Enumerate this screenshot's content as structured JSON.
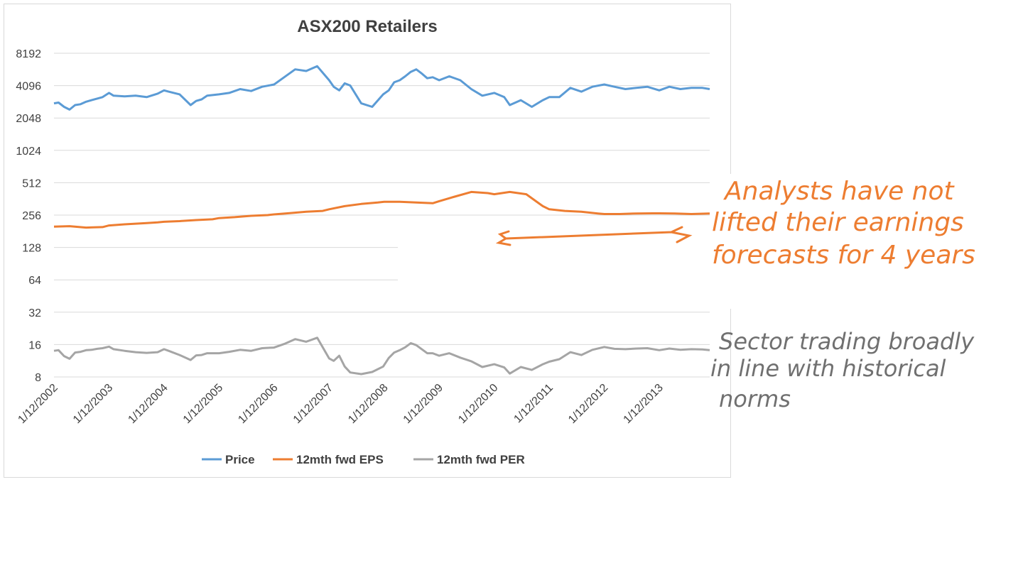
{
  "chart_data": {
    "type": "line",
    "title": "ASX200 Retailers",
    "xlabel": "",
    "ylabel": "",
    "y_scale": "log2",
    "ylim": [
      8,
      8192
    ],
    "y_ticks": [
      "8",
      "16",
      "32",
      "64",
      "128",
      "256",
      "512",
      "1024",
      "2048",
      "4096",
      "8192"
    ],
    "x_tick_labels": [
      "1/12/2002",
      "1/12/2003",
      "1/12/2004",
      "1/12/2005",
      "1/12/2006",
      "1/12/2007",
      "1/12/2008",
      "1/12/2009",
      "1/12/2010",
      "1/12/2011",
      "1/12/2012",
      "1/12/2013"
    ],
    "x_range_years": [
      2002.917,
      2014.833
    ],
    "grid": true,
    "legend_position": "bottom",
    "colors": {
      "Price": "#5b9bd5",
      "12mth fwd EPS": "#ed7d31",
      "12mth fwd PER": "#a5a5a5"
    },
    "series": [
      {
        "name": "Price",
        "x": [
          2002.917,
          2003.0,
          2003.1,
          2003.2,
          2003.3,
          2003.4,
          2003.5,
          2003.6,
          2003.7,
          2003.8,
          2003.917,
          2004.0,
          2004.2,
          2004.4,
          2004.6,
          2004.8,
          2004.917,
          2005.0,
          2005.2,
          2005.4,
          2005.5,
          2005.6,
          2005.7,
          2005.917,
          2006.1,
          2006.3,
          2006.5,
          2006.7,
          2006.917,
          2007.1,
          2007.3,
          2007.5,
          2007.7,
          2007.917,
          2008.0,
          2008.1,
          2008.2,
          2008.3,
          2008.5,
          2008.7,
          2008.9,
          2009.0,
          2009.1,
          2009.2,
          2009.3,
          2009.4,
          2009.5,
          2009.6,
          2009.7,
          2009.8,
          2009.917,
          2010.1,
          2010.3,
          2010.5,
          2010.7,
          2010.917,
          2011.1,
          2011.2,
          2011.4,
          2011.6,
          2011.8,
          2011.917,
          2012.1,
          2012.3,
          2012.5,
          2012.7,
          2012.917,
          2013.1,
          2013.3,
          2013.5,
          2013.7,
          2013.917,
          2014.1,
          2014.3,
          2014.5,
          2014.7,
          2014.833
        ],
        "values": [
          2800,
          2850,
          2600,
          2450,
          2700,
          2750,
          2900,
          3000,
          3100,
          3200,
          3500,
          3300,
          3250,
          3300,
          3200,
          3450,
          3700,
          3600,
          3400,
          2700,
          2950,
          3050,
          3300,
          3400,
          3500,
          3800,
          3650,
          4000,
          4200,
          4900,
          5800,
          5600,
          6200,
          4600,
          4000,
          3700,
          4300,
          4100,
          2800,
          2600,
          3400,
          3700,
          4400,
          4600,
          5000,
          5500,
          5800,
          5300,
          4800,
          4900,
          4600,
          5000,
          4600,
          3800,
          3300,
          3500,
          3200,
          2700,
          3000,
          2600,
          3000,
          3200,
          3200,
          3900,
          3600,
          4000,
          4200,
          4000,
          3800,
          3900,
          4000,
          3700,
          4000,
          3800,
          3900,
          3900,
          3800
        ]
      },
      {
        "name": "12mth fwd EPS",
        "x": [
          2002.917,
          2003.2,
          2003.5,
          2003.8,
          2003.917,
          2004.2,
          2004.4,
          2004.6,
          2004.8,
          2004.917,
          2005.2,
          2005.5,
          2005.8,
          2005.917,
          2006.2,
          2006.5,
          2006.8,
          2006.917,
          2007.2,
          2007.5,
          2007.8,
          2007.917,
          2008.2,
          2008.5,
          2008.8,
          2008.917,
          2009.2,
          2009.5,
          2009.8,
          2009.917,
          2010.2,
          2010.5,
          2010.8,
          2010.917,
          2011.2,
          2011.5,
          2011.8,
          2011.917,
          2012.2,
          2012.5,
          2012.8,
          2012.917,
          2013.2,
          2013.5,
          2013.8,
          2013.917,
          2014.2,
          2014.5,
          2014.833
        ],
        "values": [
          200,
          202,
          196,
          198,
          205,
          210,
          213,
          216,
          219,
          222,
          225,
          230,
          234,
          240,
          245,
          252,
          256,
          260,
          267,
          275,
          280,
          290,
          310,
          325,
          335,
          340,
          340,
          335,
          330,
          345,
          380,
          420,
          410,
          400,
          420,
          400,
          310,
          290,
          280,
          275,
          265,
          262,
          262,
          265,
          266,
          266,
          265,
          262,
          265
        ]
      },
      {
        "name": "12mth fwd PER",
        "x": [
          2002.917,
          2003.0,
          2003.1,
          2003.2,
          2003.3,
          2003.4,
          2003.5,
          2003.6,
          2003.7,
          2003.8,
          2003.917,
          2004.0,
          2004.2,
          2004.4,
          2004.6,
          2004.8,
          2004.917,
          2005.0,
          2005.2,
          2005.4,
          2005.5,
          2005.6,
          2005.7,
          2005.917,
          2006.1,
          2006.3,
          2006.5,
          2006.7,
          2006.917,
          2007.1,
          2007.3,
          2007.5,
          2007.7,
          2007.917,
          2008.0,
          2008.1,
          2008.2,
          2008.3,
          2008.5,
          2008.7,
          2008.9,
          2009.0,
          2009.1,
          2009.2,
          2009.3,
          2009.4,
          2009.5,
          2009.6,
          2009.7,
          2009.8,
          2009.917,
          2010.1,
          2010.3,
          2010.5,
          2010.7,
          2010.917,
          2011.1,
          2011.2,
          2011.4,
          2011.6,
          2011.8,
          2011.917,
          2012.1,
          2012.3,
          2012.5,
          2012.7,
          2012.917,
          2013.1,
          2013.3,
          2013.5,
          2013.7,
          2013.917,
          2014.1,
          2014.3,
          2014.5,
          2014.7,
          2014.833
        ],
        "values": [
          14,
          14.2,
          12.5,
          11.8,
          13.5,
          13.7,
          14.2,
          14.3,
          14.6,
          14.8,
          15.3,
          14.5,
          14,
          13.6,
          13.4,
          13.6,
          14.5,
          14,
          12.8,
          11.5,
          12.7,
          12.8,
          13.3,
          13.3,
          13.7,
          14.3,
          14,
          14.8,
          15,
          16.2,
          18,
          17,
          18.5,
          11.9,
          11.3,
          12.6,
          10,
          8.8,
          8.5,
          8.9,
          10,
          12,
          13.5,
          14.2,
          15.1,
          16.5,
          15.8,
          14.5,
          13.3,
          13.3,
          12.6,
          13.3,
          12.1,
          11.2,
          9.9,
          10.5,
          9.8,
          8.6,
          9.9,
          9.3,
          10.5,
          11.1,
          11.7,
          13.6,
          12.8,
          14.3,
          15.2,
          14.6,
          14.5,
          14.7,
          14.8,
          14.2,
          14.7,
          14.3,
          14.5,
          14.4,
          14.2
        ]
      }
    ]
  },
  "annotations": {
    "eps_note": [
      "Analysts have not",
      "lifted their earnings",
      "forecasts for 4 years"
    ],
    "per_note": [
      "Sector trading broadly",
      "in line with historical",
      "norms"
    ],
    "eps_note_color": "#ed7d31",
    "per_note_color": "#707070"
  }
}
